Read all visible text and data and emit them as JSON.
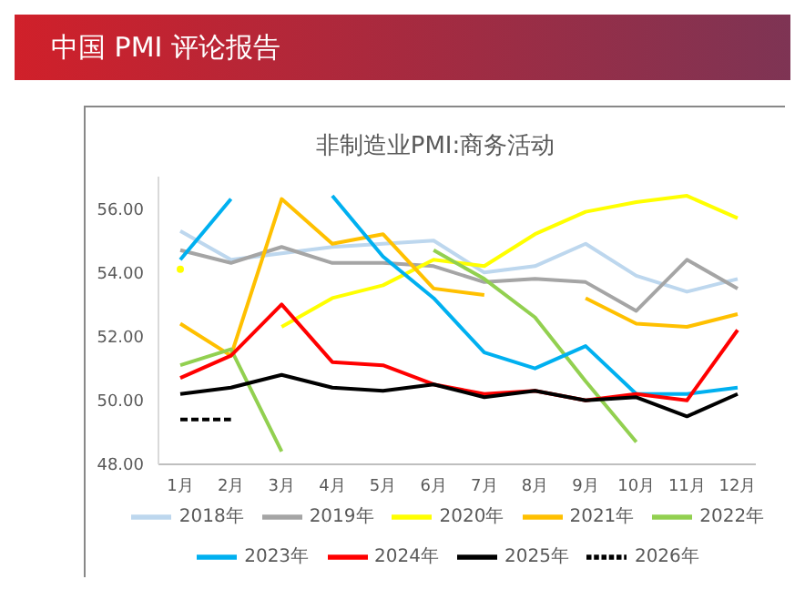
{
  "chart_data": {
    "type": "line",
    "title": "中国 PMI 评论报告",
    "subtitle": "非制造业PMI:商务活动",
    "categories": [
      "1月",
      "2月",
      "3月",
      "4月",
      "5月",
      "6月",
      "7月",
      "8月",
      "9月",
      "10月",
      "11月",
      "12月"
    ],
    "series": [
      {
        "name": "2018年",
        "color": "#bdd7ee",
        "values": [
          55.3,
          54.4,
          54.6,
          54.8,
          54.9,
          55.0,
          54.0,
          54.2,
          54.9,
          53.9,
          53.4,
          53.8
        ]
      },
      {
        "name": "2019年",
        "color": "#a5a5a5",
        "values": [
          54.7,
          54.3,
          54.8,
          54.3,
          54.3,
          54.2,
          53.7,
          53.8,
          53.7,
          52.8,
          54.4,
          53.5
        ]
      },
      {
        "name": "2020年",
        "color": "#ffff00",
        "values": [
          54.1,
          null,
          52.3,
          53.2,
          53.6,
          54.4,
          54.2,
          55.2,
          55.9,
          56.2,
          56.4,
          55.7
        ]
      },
      {
        "name": "2021年",
        "color": "#ffc000",
        "values": [
          52.4,
          51.4,
          56.3,
          54.9,
          55.2,
          53.5,
          53.3,
          null,
          53.2,
          52.4,
          52.3,
          52.7
        ]
      },
      {
        "name": "2022年",
        "color": "#92d050",
        "values": [
          51.1,
          51.6,
          48.4,
          null,
          null,
          54.7,
          53.8,
          52.6,
          50.6,
          48.7,
          null,
          null
        ]
      },
      {
        "name": "2023年",
        "color": "#00b0f0",
        "values": [
          54.4,
          56.3,
          null,
          56.4,
          54.5,
          53.2,
          51.5,
          51.0,
          51.7,
          50.2,
          50.2,
          50.4
        ]
      },
      {
        "name": "2024年",
        "color": "#ff0000",
        "values": [
          50.7,
          51.4,
          53.0,
          51.2,
          51.1,
          50.5,
          50.2,
          50.3,
          50.0,
          50.2,
          50.0,
          52.2
        ]
      },
      {
        "name": "2025年",
        "color": "#000000",
        "values": [
          50.2,
          50.4,
          50.8,
          50.4,
          50.3,
          50.5,
          50.1,
          50.3,
          50.0,
          50.1,
          49.5,
          50.2
        ]
      },
      {
        "name": "2026年",
        "color": "#000000",
        "line_style": "dashed",
        "values": [
          49.4,
          49.4,
          null,
          null,
          null,
          null,
          null,
          null,
          null,
          null,
          null,
          null
        ]
      }
    ],
    "ylim": [
      48,
      57
    ],
    "yticks": [
      {
        "value": 48,
        "label": "48.00"
      },
      {
        "value": 50,
        "label": "50.00"
      },
      {
        "value": 52,
        "label": "52.00"
      },
      {
        "value": 54,
        "label": "54.00"
      },
      {
        "value": 56,
        "label": "56.00"
      }
    ],
    "grid": false,
    "legend": "bottom",
    "marker": "none",
    "line_style": "solid"
  }
}
